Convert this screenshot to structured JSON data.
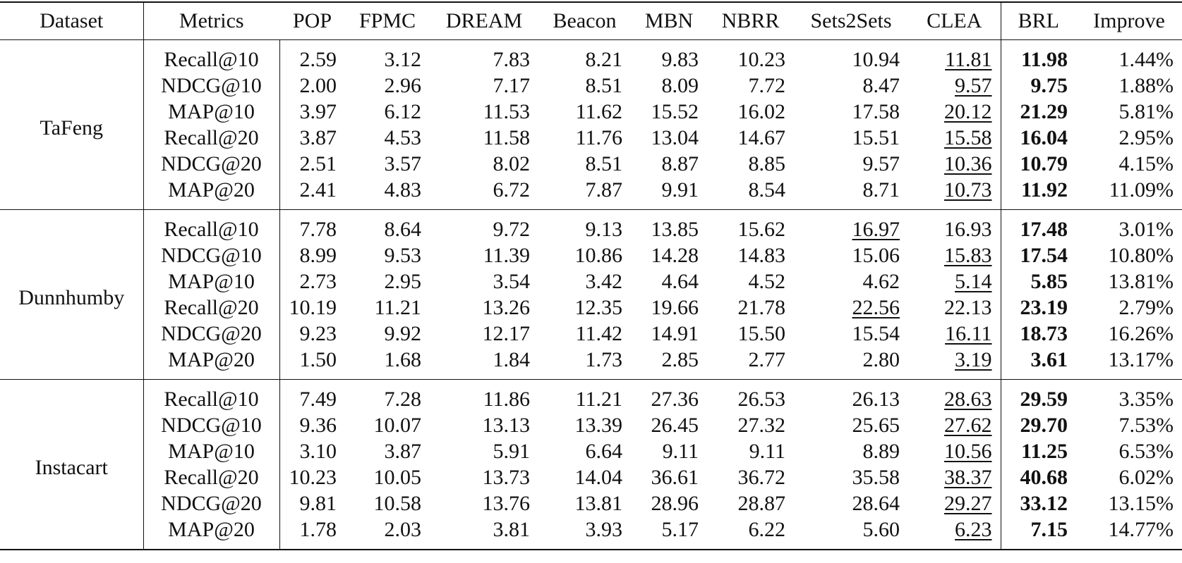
{
  "table": {
    "columns": [
      "Dataset",
      "Metrics",
      "POP",
      "FPMC",
      "DREAM",
      "Beacon",
      "MBN",
      "NBRR",
      "Sets2Sets",
      "CLEA",
      "BRL",
      "Improve"
    ],
    "groups": [
      {
        "dataset": "TaFeng",
        "rows": [
          [
            "Recall@10",
            "2.59",
            "3.12",
            "7.83",
            "8.21",
            "9.83",
            "10.23",
            "10.94",
            "11.81",
            "11.98",
            "1.44%"
          ],
          [
            "NDCG@10",
            "2.00",
            "2.96",
            "7.17",
            "8.51",
            "8.09",
            "7.72",
            "8.47",
            "9.57",
            "9.75",
            "1.88%"
          ],
          [
            "MAP@10",
            "3.97",
            "6.12",
            "11.53",
            "11.62",
            "15.52",
            "16.02",
            "17.58",
            "20.12",
            "21.29",
            "5.81%"
          ],
          [
            "Recall@20",
            "3.87",
            "4.53",
            "11.58",
            "11.76",
            "13.04",
            "14.67",
            "15.51",
            "15.58",
            "16.04",
            "2.95%"
          ],
          [
            "NDCG@20",
            "2.51",
            "3.57",
            "8.02",
            "8.51",
            "8.87",
            "8.85",
            "9.57",
            "10.36",
            "10.79",
            "4.15%"
          ],
          [
            "MAP@20",
            "2.41",
            "4.83",
            "6.72",
            "7.87",
            "9.91",
            "8.54",
            "8.71",
            "10.73",
            "11.92",
            "11.09%"
          ]
        ]
      },
      {
        "dataset": "Dunnhumby",
        "rows": [
          [
            "Recall@10",
            "7.78",
            "8.64",
            "9.72",
            "9.13",
            "13.85",
            "15.62",
            "16.97",
            "16.93",
            "17.48",
            "3.01%"
          ],
          [
            "NDCG@10",
            "8.99",
            "9.53",
            "11.39",
            "10.86",
            "14.28",
            "14.83",
            "15.06",
            "15.83",
            "17.54",
            "10.80%"
          ],
          [
            "MAP@10",
            "2.73",
            "2.95",
            "3.54",
            "3.42",
            "4.64",
            "4.52",
            "4.62",
            "5.14",
            "5.85",
            "13.81%"
          ],
          [
            "Recall@20",
            "10.19",
            "11.21",
            "13.26",
            "12.35",
            "19.66",
            "21.78",
            "22.56",
            "22.13",
            "23.19",
            "2.79%"
          ],
          [
            "NDCG@20",
            "9.23",
            "9.92",
            "12.17",
            "11.42",
            "14.91",
            "15.50",
            "15.54",
            "16.11",
            "18.73",
            "16.26%"
          ],
          [
            "MAP@20",
            "1.50",
            "1.68",
            "1.84",
            "1.73",
            "2.85",
            "2.77",
            "2.80",
            "3.19",
            "3.61",
            "13.17%"
          ]
        ]
      },
      {
        "dataset": "Instacart",
        "rows": [
          [
            "Recall@10",
            "7.49",
            "7.28",
            "11.86",
            "11.21",
            "27.36",
            "26.53",
            "26.13",
            "28.63",
            "29.59",
            "3.35%"
          ],
          [
            "NDCG@10",
            "9.36",
            "10.07",
            "13.13",
            "13.39",
            "26.45",
            "27.32",
            "25.65",
            "27.62",
            "29.70",
            "7.53%"
          ],
          [
            "MAP@10",
            "3.10",
            "3.87",
            "5.91",
            "6.64",
            "9.11",
            "9.11",
            "8.89",
            "10.56",
            "11.25",
            "6.53%"
          ],
          [
            "Recall@20",
            "10.23",
            "10.05",
            "13.73",
            "14.04",
            "36.61",
            "36.72",
            "35.58",
            "38.37",
            "40.68",
            "6.02%"
          ],
          [
            "NDCG@20",
            "9.81",
            "10.58",
            "13.76",
            "13.81",
            "28.96",
            "28.87",
            "28.64",
            "29.27",
            "33.12",
            "13.15%"
          ],
          [
            "MAP@20",
            "1.78",
            "2.03",
            "3.81",
            "3.93",
            "5.17",
            "6.22",
            "5.60",
            "6.23",
            "7.15",
            "14.77%"
          ]
        ]
      }
    ]
  }
}
